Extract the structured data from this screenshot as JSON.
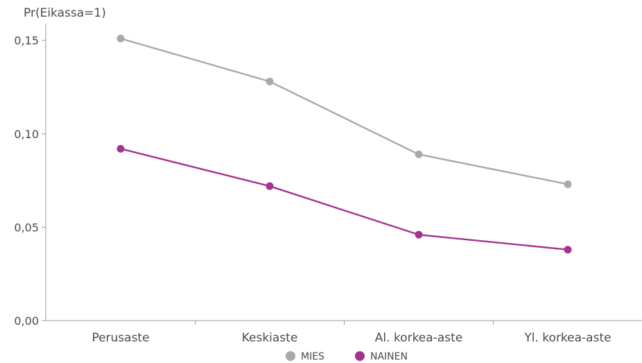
{
  "chart_data": {
    "type": "line",
    "title": "",
    "xlabel": "",
    "ylabel": "Pr(Eikassa=1)",
    "categories": [
      "Perusaste",
      "Keskiaste",
      "Al. korkea-aste",
      "Yl. korkea-aste"
    ],
    "ylim": [
      0,
      0.16
    ],
    "yticks": [
      {
        "value": 0.0,
        "label": "0,00"
      },
      {
        "value": 0.05,
        "label": "0,05"
      },
      {
        "value": 0.1,
        "label": "0,10"
      },
      {
        "value": 0.15,
        "label": "0,15"
      }
    ],
    "grid": false,
    "legend_position": "bottom",
    "series": [
      {
        "name": "MIES",
        "color": "#a7a9ae",
        "values": [
          0.151,
          0.128,
          0.089,
          0.073
        ]
      },
      {
        "name": "NAINEN",
        "color": "#a3338f",
        "values": [
          0.092,
          0.072,
          0.046,
          0.038
        ]
      }
    ]
  }
}
